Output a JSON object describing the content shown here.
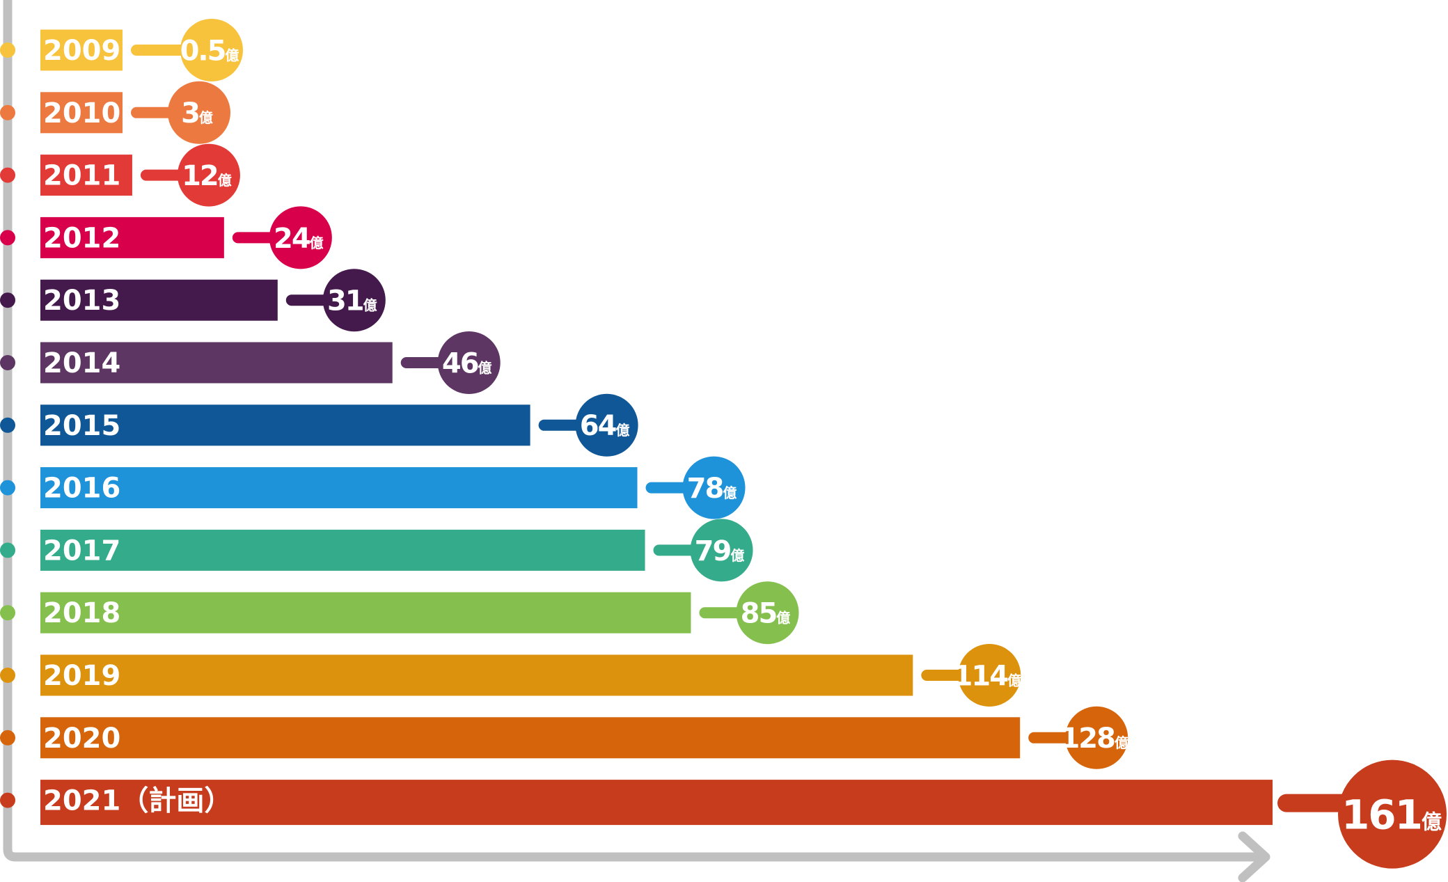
{
  "chart_data": {
    "type": "bar",
    "orientation": "horizontal",
    "title": "",
    "xlabel": "",
    "ylabel": "",
    "unit": "億",
    "categories": [
      "2009",
      "2010",
      "2011",
      "2012",
      "2013",
      "2014",
      "2015",
      "2016",
      "2017",
      "2018",
      "2019",
      "2020",
      "2021（計画）"
    ],
    "values": [
      0.5,
      3,
      12,
      24,
      31,
      46,
      64,
      78,
      79,
      85,
      114,
      128,
      161
    ],
    "value_labels": [
      "0.5",
      "3",
      "12",
      "24",
      "31",
      "46",
      "64",
      "78",
      "79",
      "85",
      "114",
      "128",
      "161"
    ],
    "colors": [
      "#f7c23c",
      "#ec7a40",
      "#e23a37",
      "#d8004a",
      "#44194c",
      "#5d3663",
      "#0f5796",
      "#1f93d9",
      "#34ab8a",
      "#85c04e",
      "#dc920c",
      "#d5640a",
      "#c63c1d"
    ],
    "axis_color": "#c0c0c0",
    "grid": false,
    "legend": "none"
  }
}
